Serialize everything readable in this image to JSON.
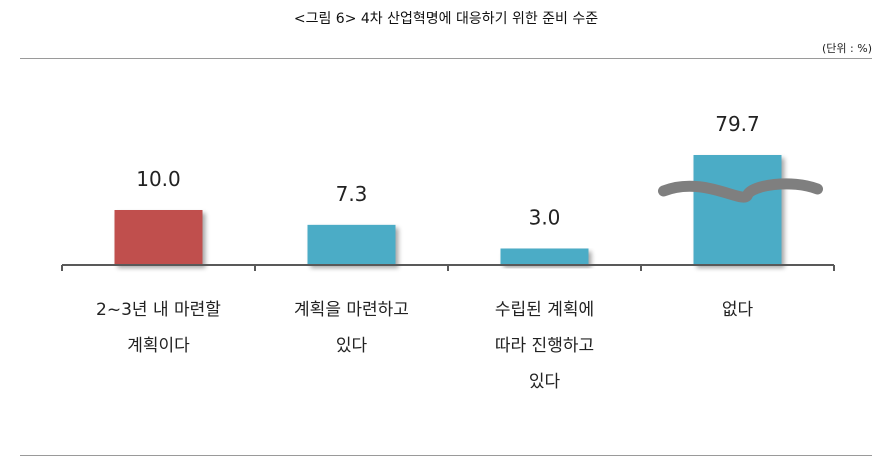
{
  "title": "<그림 6> 4차 산업혁명에 대응하기 위한 준비 수준",
  "unit": "(단위 : %)",
  "colors": {
    "highlight": "#c0504d",
    "bar": "#4bacc6",
    "axis": "#595959",
    "break": "#7f7f7f"
  },
  "chart_data": {
    "type": "bar",
    "categories": [
      "2~3년 내 마련할 계획이다",
      "계획을 마련하고 있다",
      "수립된 계획에 따라 진행하고 있다",
      "없다"
    ],
    "category_lines": [
      [
        "2~3년 내 마련할",
        "계획이다"
      ],
      [
        "계획을 마련하고",
        "있다"
      ],
      [
        "수립된 계획에",
        "따라 진행하고",
        "있다"
      ],
      [
        "없다"
      ]
    ],
    "values": [
      10.0,
      7.3,
      3.0,
      79.7
    ],
    "value_labels": [
      "10.0",
      "7.3",
      "3.0",
      "79.7"
    ],
    "bar_colors": [
      "#c0504d",
      "#4bacc6",
      "#4bacc6",
      "#4bacc6"
    ],
    "broken_axis_bar": "없다",
    "unit": "%",
    "xlabel": "",
    "ylabel": ""
  }
}
